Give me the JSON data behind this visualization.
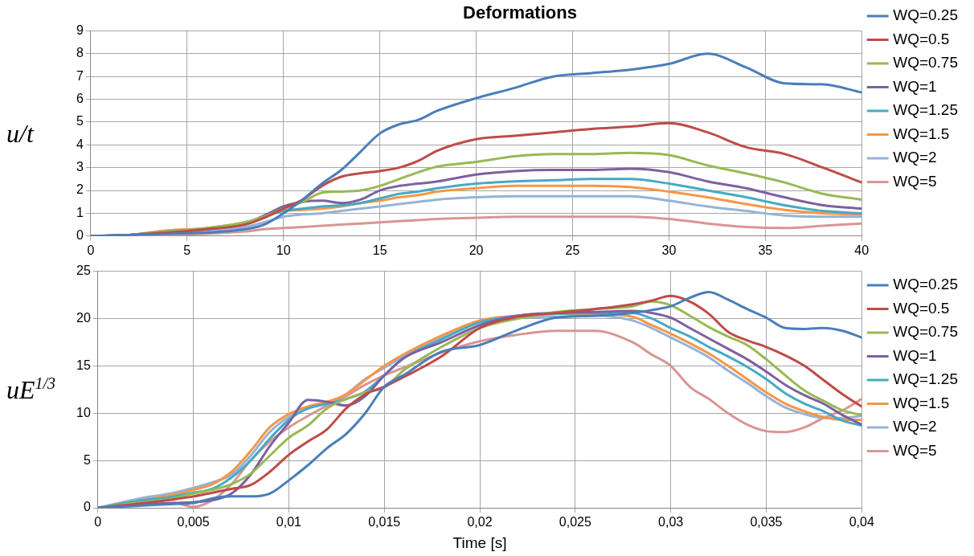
{
  "chart_data": [
    {
      "type": "line",
      "title": "Deformations",
      "ylabel": "u/t",
      "legend": "right",
      "grid": true,
      "marker": "none",
      "line_style": "solid",
      "x": [
        0,
        2,
        4,
        6,
        8,
        9,
        10,
        11,
        12,
        13,
        14,
        15,
        16,
        17,
        18,
        20,
        22,
        24,
        26,
        28,
        30,
        32,
        34,
        36,
        38,
        40
      ],
      "xlim": [
        0,
        40
      ],
      "xticks": [
        0,
        5,
        10,
        15,
        20,
        25,
        30,
        35,
        40
      ],
      "ylim": [
        0,
        9
      ],
      "yticks": [
        0,
        1,
        2,
        3,
        4,
        5,
        6,
        7,
        8,
        9
      ],
      "series": [
        {
          "name": "WQ=0.25",
          "color": "#4a7ebb",
          "values": [
            0,
            0.05,
            0.1,
            0.15,
            0.3,
            0.5,
            1.0,
            1.6,
            2.3,
            2.9,
            3.7,
            4.5,
            4.9,
            5.1,
            5.5,
            6.05,
            6.5,
            7.0,
            7.15,
            7.3,
            7.55,
            8.0,
            7.4,
            6.7,
            6.65,
            6.3
          ]
        },
        {
          "name": "WQ=0.5",
          "color": "#be4b48",
          "values": [
            0,
            0.05,
            0.15,
            0.3,
            0.5,
            0.8,
            1.2,
            1.6,
            2.2,
            2.6,
            2.75,
            2.85,
            3.0,
            3.3,
            3.75,
            4.25,
            4.4,
            4.55,
            4.7,
            4.8,
            4.95,
            4.55,
            3.9,
            3.6,
            3.0,
            2.35
          ]
        },
        {
          "name": "WQ=0.75",
          "color": "#98b954",
          "values": [
            0,
            0.05,
            0.2,
            0.35,
            0.6,
            0.85,
            1.2,
            1.5,
            1.9,
            1.95,
            2.0,
            2.2,
            2.5,
            2.8,
            3.05,
            3.25,
            3.5,
            3.6,
            3.6,
            3.65,
            3.55,
            3.1,
            2.75,
            2.35,
            1.85,
            1.6
          ]
        },
        {
          "name": "WQ=1",
          "color": "#7d60a0",
          "values": [
            0,
            0.05,
            0.2,
            0.3,
            0.55,
            0.9,
            1.3,
            1.5,
            1.55,
            1.45,
            1.6,
            2.0,
            2.2,
            2.3,
            2.4,
            2.7,
            2.85,
            2.9,
            2.9,
            2.95,
            2.8,
            2.4,
            2.1,
            1.7,
            1.35,
            1.2
          ]
        },
        {
          "name": "WQ=1.25",
          "color": "#46aac5",
          "values": [
            0,
            0.05,
            0.2,
            0.3,
            0.55,
            0.85,
            1.1,
            1.2,
            1.3,
            1.35,
            1.45,
            1.65,
            1.85,
            1.95,
            2.1,
            2.3,
            2.4,
            2.45,
            2.5,
            2.5,
            2.3,
            2.0,
            1.7,
            1.35,
            1.1,
            1.0
          ]
        },
        {
          "name": "WQ=1.5",
          "color": "#f79646",
          "values": [
            0,
            0.05,
            0.25,
            0.35,
            0.6,
            0.85,
            1.1,
            1.15,
            1.2,
            1.3,
            1.45,
            1.55,
            1.7,
            1.8,
            1.95,
            2.1,
            2.2,
            2.2,
            2.2,
            2.15,
            1.95,
            1.7,
            1.4,
            1.15,
            1.0,
            0.95
          ]
        },
        {
          "name": "WQ=2",
          "color": "#95b3d7",
          "values": [
            0,
            0.05,
            0.15,
            0.25,
            0.4,
            0.6,
            0.85,
            0.95,
            1.0,
            1.1,
            1.2,
            1.3,
            1.4,
            1.5,
            1.6,
            1.7,
            1.75,
            1.75,
            1.75,
            1.75,
            1.55,
            1.3,
            1.1,
            0.9,
            0.85,
            0.85
          ]
        },
        {
          "name": "WQ=5",
          "color": "#d99694",
          "values": [
            0,
            0.02,
            0.05,
            0.1,
            0.2,
            0.3,
            0.35,
            0.4,
            0.45,
            0.5,
            0.55,
            0.6,
            0.65,
            0.7,
            0.75,
            0.8,
            0.85,
            0.85,
            0.85,
            0.85,
            0.75,
            0.55,
            0.4,
            0.35,
            0.45,
            0.55
          ]
        }
      ]
    },
    {
      "type": "line",
      "xlabel": "Time [s]",
      "ylabel": "uE$^{1/3}$",
      "legend": "right",
      "grid": true,
      "marker": "none",
      "line_style": "solid",
      "x": [
        0,
        0.002,
        0.004,
        0.005,
        0.006,
        0.007,
        0.008,
        0.009,
        0.01,
        0.011,
        0.012,
        0.013,
        0.014,
        0.015,
        0.016,
        0.018,
        0.02,
        0.022,
        0.024,
        0.026,
        0.028,
        0.029,
        0.03,
        0.031,
        0.032,
        0.033,
        0.034,
        0.035,
        0.036,
        0.037,
        0.038,
        0.039,
        0.04
      ],
      "xlim": [
        0,
        0.04
      ],
      "xticks": [
        0,
        {
          "value": 0.005,
          "label": "0,005"
        },
        {
          "value": 0.01,
          "label": "0,01"
        },
        {
          "value": 0.015,
          "label": "0,015"
        },
        {
          "value": 0.02,
          "label": "0,02"
        },
        {
          "value": 0.025,
          "label": "0,025"
        },
        {
          "value": 0.03,
          "label": "0,03"
        },
        {
          "value": 0.035,
          "label": "0,035"
        },
        {
          "value": 0.04,
          "label": "0,04"
        }
      ],
      "ylim": [
        0,
        25
      ],
      "yticks": [
        0,
        5,
        10,
        15,
        20,
        25
      ],
      "series": [
        {
          "name": "WQ=0.25",
          "color": "#4a7ebb",
          "values": [
            0,
            0.2,
            0.4,
            0.5,
            1.0,
            1.2,
            1.2,
            1.5,
            2.9,
            4.5,
            6.3,
            7.8,
            10,
            12.8,
            14,
            16.5,
            17.2,
            18.8,
            20.1,
            20.3,
            20.6,
            20.9,
            21.3,
            22.2,
            22.8,
            22.0,
            21.0,
            20.1,
            19.0,
            18.9,
            19.0,
            18.7,
            18.0
          ]
        },
        {
          "name": "WQ=0.5",
          "color": "#be4b48",
          "values": [
            0,
            0.4,
            0.9,
            1.2,
            1.6,
            2.0,
            2.4,
            3.8,
            5.6,
            7.0,
            8.3,
            10.5,
            12.0,
            12.8,
            13.8,
            16.0,
            19.0,
            20.2,
            20.6,
            21.0,
            21.5,
            21.9,
            22.4,
            21.8,
            20.5,
            18.6,
            17.7,
            17.0,
            16.1,
            15.0,
            13.5,
            12.0,
            10.7
          ]
        },
        {
          "name": "WQ=0.75",
          "color": "#98b954",
          "values": [
            0,
            0.5,
            1.0,
            1.5,
            1.9,
            2.5,
            3.6,
            5.5,
            7.4,
            8.7,
            10.5,
            11.5,
            12.2,
            12.7,
            14.5,
            17.0,
            19.0,
            20.0,
            20.7,
            21.0,
            21.3,
            21.8,
            21.4,
            20.3,
            19.1,
            18.1,
            17.2,
            15.7,
            14.0,
            12.4,
            11.3,
            10.3,
            9.8
          ]
        },
        {
          "name": "WQ=1",
          "color": "#7d60a0",
          "values": [
            0,
            0.3,
            0.5,
            0.6,
            0.8,
            1.5,
            3.5,
            6.5,
            9.0,
            11.4,
            11.2,
            10.8,
            11.8,
            14.0,
            15.8,
            17.5,
            19.3,
            20.3,
            20.6,
            20.7,
            20.8,
            20.6,
            20.1,
            19.0,
            17.9,
            16.8,
            15.7,
            14.4,
            13.0,
            11.9,
            11.0,
            9.8,
            8.8
          ]
        },
        {
          "name": "WQ=1.25",
          "color": "#46aac5",
          "values": [
            0,
            0.7,
            1.2,
            1.6,
            2.0,
            3.2,
            5.0,
            7.3,
            9.3,
            10.5,
            11.0,
            11.5,
            12.3,
            14.0,
            15.8,
            17.8,
            19.6,
            20.3,
            20.5,
            20.6,
            20.6,
            20.0,
            19.0,
            18.1,
            17.0,
            16.0,
            14.9,
            13.6,
            12.1,
            11.0,
            10.2,
            9.2,
            8.7
          ]
        },
        {
          "name": "WQ=1.5",
          "color": "#f79646",
          "values": [
            0,
            0.7,
            1.4,
            1.9,
            2.5,
            3.8,
            6.0,
            8.5,
            9.9,
            10.7,
            11.2,
            12.0,
            13.5,
            15.0,
            16.2,
            18.2,
            19.8,
            20.3,
            20.5,
            20.5,
            20.2,
            19.3,
            18.4,
            17.4,
            16.3,
            15.0,
            13.6,
            12.2,
            11.0,
            10.2,
            9.6,
            9.3,
            9.3
          ]
        },
        {
          "name": "WQ=2",
          "color": "#95b3d7",
          "values": [
            0,
            0.9,
            1.6,
            2.1,
            2.7,
            3.5,
            5.5,
            8.0,
            9.6,
            10.5,
            11.0,
            12.0,
            13.6,
            14.8,
            16.0,
            18.0,
            19.6,
            20.1,
            20.2,
            20.3,
            19.8,
            19.0,
            18.0,
            17.0,
            15.9,
            14.5,
            13.2,
            11.8,
            10.6,
            9.9,
            9.5,
            9.5,
            9.7
          ]
        },
        {
          "name": "WQ=5",
          "color": "#d99694",
          "values": [
            0,
            null,
            0.5,
            0.1,
            0.8,
            2.5,
            5.0,
            7.0,
            8.5,
            9.7,
            10.8,
            11.8,
            13.0,
            14.0,
            14.8,
            16.4,
            17.6,
            18.3,
            18.7,
            18.7,
            17.5,
            16.2,
            15.0,
            12.8,
            11.5,
            10.0,
            8.8,
            8.1,
            8.0,
            8.5,
            9.5,
            10.3,
            11.5
          ]
        }
      ]
    }
  ]
}
